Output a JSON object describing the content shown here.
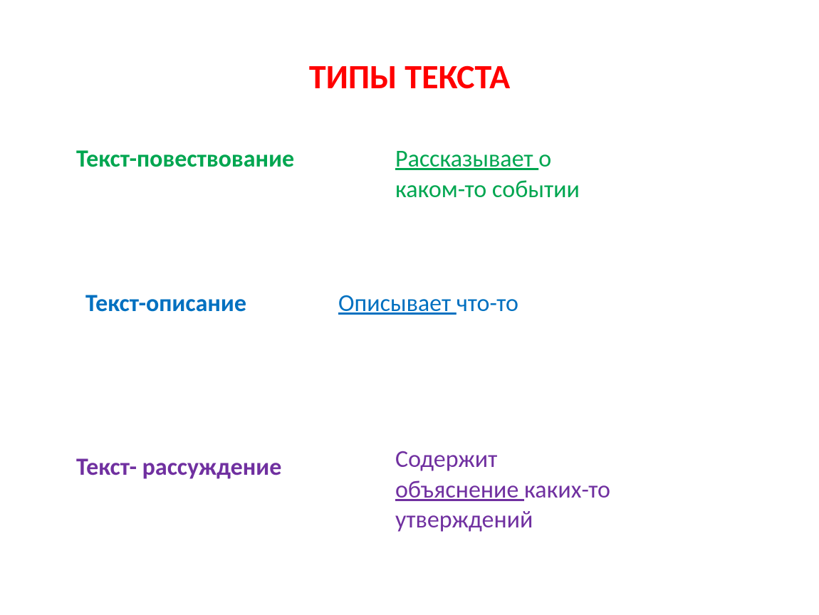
{
  "title": {
    "text": "ТИПЫ ТЕКСТА",
    "color": "#ff0000",
    "fontsize": 48
  },
  "rows": [
    {
      "label": "Текст-повествование",
      "label_color": "#00a650",
      "label_fontsize": 34,
      "desc_underlined": "Рассказывает ",
      "desc_rest_line1": "о",
      "desc_line2": "каком-то событии",
      "desc_color": "#00a650",
      "desc_fontsize": 34
    },
    {
      "label": "Текст-описание",
      "label_color": "#0070c0",
      "label_fontsize": 34,
      "desc_underlined": "Описывает ",
      "desc_rest_line1": "что-то",
      "desc_color": "#0070c0",
      "desc_fontsize": 34
    },
    {
      "label": "Текст- рассуждение",
      "label_color": "#7030a0",
      "label_fontsize": 34,
      "desc_line0": "Содержит",
      "desc_underlined": "объяснение ",
      "desc_rest_line1": "каких-то",
      "desc_line2": "утверждений",
      "desc_color": "#7030a0",
      "desc_fontsize": 34
    }
  ],
  "background_color": "#ffffff"
}
